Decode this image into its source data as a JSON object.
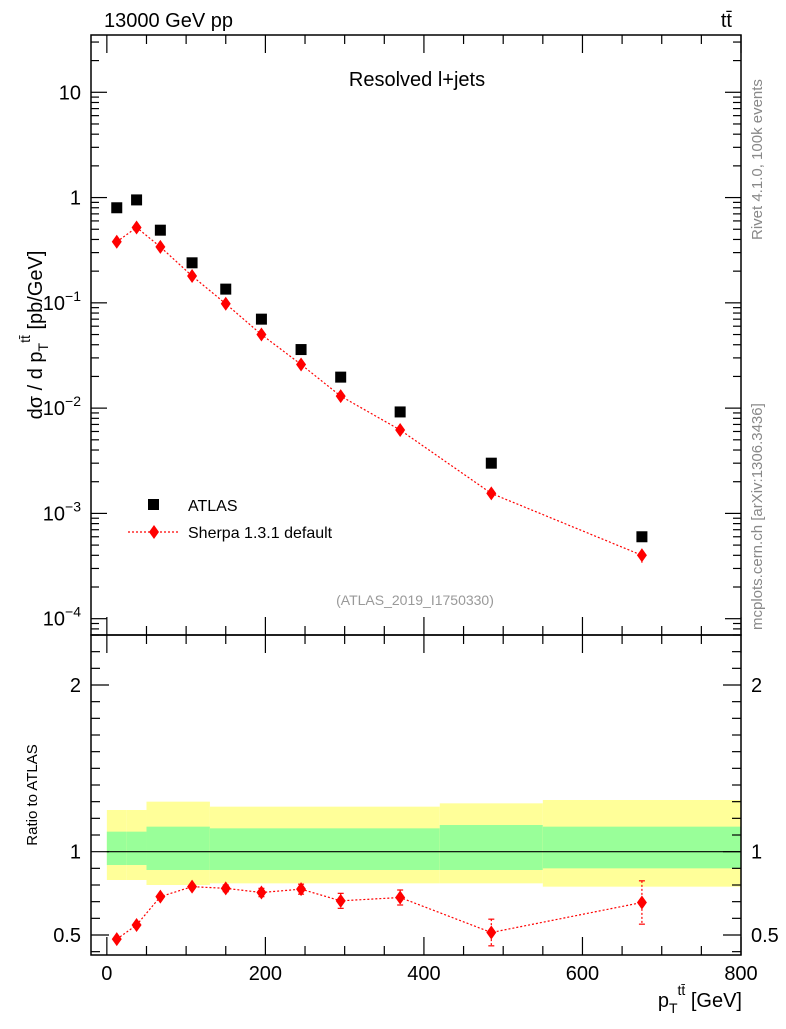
{
  "header": {
    "left": "13000 GeV pp",
    "right": "tt̄"
  },
  "side_labels": {
    "rivet": "Rivet 4.1.0,  100k events",
    "mcplots": "mcplots.cern.ch [arXiv:1306.3436]"
  },
  "chart_data": [
    {
      "type": "scatter",
      "title": "Resolved l+jets",
      "analysis_id": "(ATLAS_2019_I1750330)",
      "ylabel": "dσ / d p_T^{tt̄} [pb/GeV]",
      "ylabel_parts": {
        "pre": "dσ / d p",
        "sub": "T",
        "sup": "tt̄",
        "post": " [pb/GeV]"
      },
      "yscale": "log",
      "ylim": [
        7e-05,
        35
      ],
      "xlim": [
        -20,
        800
      ],
      "yticks": [
        {
          "value": 10,
          "label": "10"
        },
        {
          "value": 1,
          "label": "1"
        },
        {
          "value": 0.1,
          "base": "10",
          "exp": "−1"
        },
        {
          "value": 0.01,
          "base": "10",
          "exp": "−2"
        },
        {
          "value": 0.001,
          "base": "10",
          "exp": "−3"
        },
        {
          "value": 0.0001,
          "base": "10",
          "exp": "−4"
        }
      ],
      "legend": {
        "position": "bottom-left",
        "entries": [
          "ATLAS",
          "Sherpa 1.3.1 default"
        ]
      },
      "series": [
        {
          "name": "ATLAS",
          "marker": "square",
          "color": "#000000",
          "x": [
            12.5,
            37.5,
            67.5,
            107.5,
            150,
            195,
            245,
            295,
            370,
            485,
            675
          ],
          "y": [
            0.8,
            0.95,
            0.49,
            0.24,
            0.135,
            0.07,
            0.036,
            0.0197,
            0.0092,
            0.003,
            0.0006
          ]
        },
        {
          "name": "Sherpa 1.3.1 default",
          "marker": "diamond",
          "color": "#ff0000",
          "linestyle": "dotted",
          "x": [
            12.5,
            37.5,
            67.5,
            107.5,
            150,
            195,
            245,
            295,
            370,
            485,
            675
          ],
          "y": [
            0.38,
            0.52,
            0.34,
            0.18,
            0.098,
            0.05,
            0.026,
            0.013,
            0.0062,
            0.00155,
            0.0004
          ],
          "yerr": [
            0,
            0,
            0,
            0,
            0,
            0,
            0,
            0,
            0,
            0,
            6e-05
          ]
        }
      ]
    },
    {
      "type": "scatter",
      "ylabel": "Ratio to ATLAS",
      "xlabel": "p_T^{tt̄} [GeV]",
      "xlabel_parts": {
        "pre": "p",
        "sub": "T",
        "sup": "tt̄",
        "post": " [GeV]"
      },
      "xlim": [
        -20,
        800
      ],
      "ylim": [
        0.38,
        2.3
      ],
      "xticks": [
        0,
        200,
        400,
        600,
        800
      ],
      "yticks": [
        0.5,
        1,
        2
      ],
      "reference_line": 1,
      "bands": {
        "bin_edges": [
          0,
          25,
          50,
          130,
          420,
          550,
          800
        ],
        "inner_color": "#99ff99",
        "outer_color": "#ffff99",
        "inner": [
          [
            0.92,
            1.12
          ],
          [
            0.92,
            1.12
          ],
          [
            0.89,
            1.15
          ],
          [
            0.89,
            1.14
          ],
          [
            0.89,
            1.16
          ],
          [
            0.9,
            1.15
          ]
        ],
        "outer": [
          [
            0.83,
            1.25
          ],
          [
            0.83,
            1.25
          ],
          [
            0.8,
            1.3
          ],
          [
            0.81,
            1.27
          ],
          [
            0.81,
            1.29
          ],
          [
            0.79,
            1.31
          ]
        ]
      },
      "series": [
        {
          "name": "Sherpa 1.3.1 default / ATLAS",
          "marker": "diamond",
          "color": "#ff0000",
          "x": [
            12.5,
            37.5,
            67.5,
            107.5,
            150,
            195,
            245,
            295,
            370,
            485,
            675
          ],
          "y": [
            0.475,
            0.56,
            0.73,
            0.79,
            0.78,
            0.755,
            0.775,
            0.705,
            0.725,
            0.515,
            0.695
          ],
          "yerr": [
            0,
            0,
            0,
            0,
            0.02,
            0.025,
            0.03,
            0.045,
            0.045,
            0.08,
            0.13
          ]
        }
      ]
    }
  ]
}
